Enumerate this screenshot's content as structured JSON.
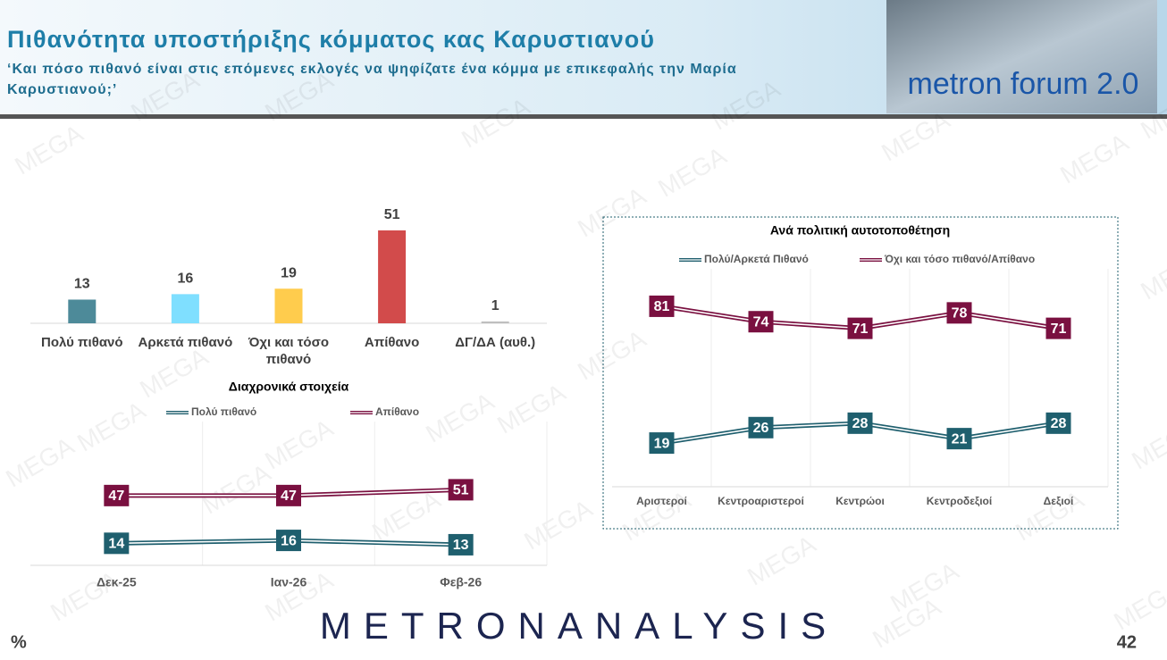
{
  "header": {
    "title": "Πιθανότητα υποστήριξης κόμματος κας Καρυστιανού",
    "subtitle": "‘Και πόσο πιθανό είναι στις επόμενες εκλογές να ψηφίζατε ένα κόμμα με επικεφαλής την Μαρία Καρυστιανού;’",
    "logo": "metron forum 2.0"
  },
  "watermark": "MEGA",
  "chart_data": [
    {
      "type": "bar",
      "categories": [
        "Πολύ πιθανό",
        "Αρκετά πιθανό",
        "Όχι και τόσο πιθανό",
        "Απίθανο",
        "ΔΓ/ΔΑ (αυθ.)"
      ],
      "values": [
        13,
        16,
        19,
        51,
        1
      ],
      "colors": [
        "#4d8a99",
        "#7fdfff",
        "#ffcc4d",
        "#d24b4b",
        "#bfbfbf"
      ]
    },
    {
      "type": "line",
      "title": "Διαχρονικά στοιχεία",
      "categories": [
        "Δεκ-25",
        "Ιαν-26",
        "Φεβ-26"
      ],
      "series": [
        {
          "name": "Πολύ πιθανό",
          "color": "#1f5f6e",
          "values": [
            14,
            16,
            13
          ]
        },
        {
          "name": "Απίθανο",
          "color": "#7a1040",
          "values": [
            47,
            47,
            51
          ]
        }
      ]
    },
    {
      "type": "line",
      "title": "Ανά πολιτική αυτοτοποθέτηση",
      "categories": [
        "Αριστεροί",
        "Κεντροαριστεροί",
        "Κεντρώοι",
        "Κεντροδεξιοί",
        "Δεξιοί"
      ],
      "series": [
        {
          "name": "Πολύ/Αρκετά Πιθανό",
          "color": "#1f5f6e",
          "values": [
            19,
            26,
            28,
            21,
            28
          ]
        },
        {
          "name": "Όχι και τόσο πιθανό/Απίθανο",
          "color": "#7a1040",
          "values": [
            81,
            74,
            71,
            78,
            71
          ]
        }
      ]
    }
  ],
  "footer": {
    "brand": "METRONANALYSIS",
    "unit": "%",
    "page": "42"
  }
}
